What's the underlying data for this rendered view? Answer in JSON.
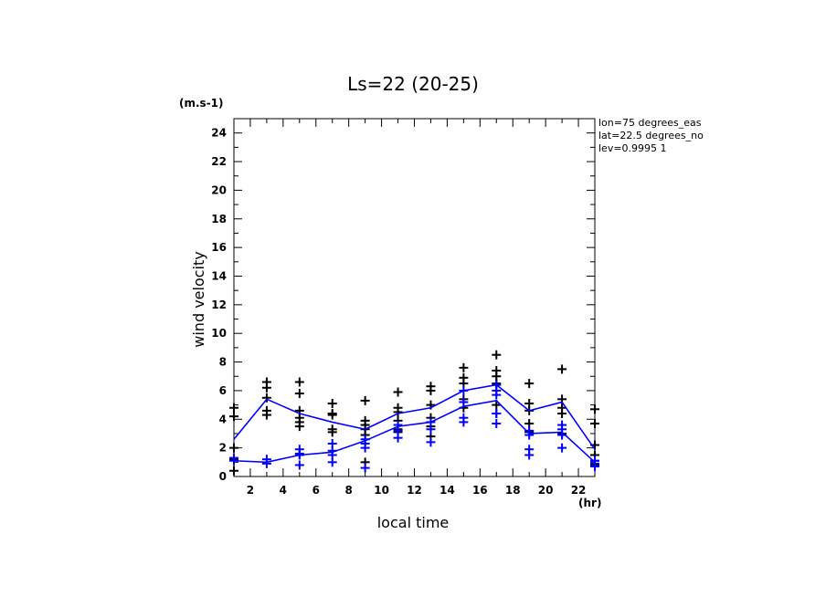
{
  "chart_data": {
    "type": "line",
    "title": "Ls=22 (20-25)",
    "xlabel": "local time",
    "ylabel": "wind velocity",
    "xunit": "(hr)",
    "yunit": "(m.s-1)",
    "xlim": [
      1,
      23
    ],
    "ylim": [
      0,
      25
    ],
    "xticks": [
      2,
      4,
      6,
      8,
      10,
      12,
      14,
      16,
      18,
      20,
      22
    ],
    "yticks": [
      0,
      2,
      4,
      6,
      8,
      10,
      12,
      14,
      16,
      18,
      20,
      22,
      24
    ],
    "annotations": [
      "lon=75 degrees_eas",
      "lat=22.5 degrees_no",
      "lev=0.9995 1"
    ],
    "x": [
      1,
      3,
      5,
      7,
      9,
      11,
      13,
      15,
      17,
      19,
      21,
      23
    ],
    "series": [
      {
        "color": "#0000ff",
        "values": [
          2.6,
          5.4,
          4.4,
          3.8,
          3.3,
          4.4,
          4.8,
          6.0,
          6.4,
          4.6,
          5.2,
          1.9
        ]
      },
      {
        "color": "#0000ff",
        "values": [
          1.1,
          1.0,
          1.5,
          1.7,
          2.5,
          3.5,
          3.8,
          4.9,
          5.3,
          3.0,
          3.1,
          1.0
        ]
      }
    ],
    "scatter_black": [
      {
        "x": 1,
        "y": [
          4.8,
          4.2,
          2.0,
          1.2,
          0.4
        ]
      },
      {
        "x": 3,
        "y": [
          6.6,
          6.2,
          5.5,
          4.6,
          4.3
        ]
      },
      {
        "x": 5,
        "y": [
          6.6,
          5.8,
          4.6,
          4.1,
          3.8,
          3.5
        ]
      },
      {
        "x": 7,
        "y": [
          5.1,
          4.4,
          4.3,
          3.3,
          3.1
        ]
      },
      {
        "x": 9,
        "y": [
          5.3,
          3.9,
          3.6,
          3.3,
          2.9,
          1.0
        ]
      },
      {
        "x": 11,
        "y": [
          5.9,
          4.8,
          4.5,
          3.9,
          3.3,
          3.1
        ]
      },
      {
        "x": 13,
        "y": [
          6.3,
          6.0,
          5.0,
          4.1,
          3.5,
          2.8
        ]
      },
      {
        "x": 15,
        "y": [
          7.6,
          6.9,
          6.5,
          5.4,
          4.8
        ]
      },
      {
        "x": 17,
        "y": [
          8.5,
          7.4,
          7.0,
          6.5,
          5.0,
          4.4
        ]
      },
      {
        "x": 19,
        "y": [
          6.5,
          5.1,
          4.6,
          3.7,
          3.1
        ]
      },
      {
        "x": 21,
        "y": [
          7.5,
          5.4,
          4.8,
          4.4,
          3.0
        ]
      },
      {
        "x": 23,
        "y": [
          4.7,
          3.7,
          2.2,
          1.5,
          1.1,
          0.8
        ]
      }
    ],
    "scatter_blue": [
      {
        "x": 1,
        "y": [
          1.3,
          1.1
        ]
      },
      {
        "x": 3,
        "y": [
          1.2,
          0.9
        ]
      },
      {
        "x": 5,
        "y": [
          1.9,
          1.6,
          1.5,
          0.8
        ]
      },
      {
        "x": 7,
        "y": [
          2.3,
          1.8,
          1.5,
          1.0
        ]
      },
      {
        "x": 9,
        "y": [
          2.6,
          2.3,
          2.0,
          0.6
        ]
      },
      {
        "x": 11,
        "y": [
          3.6,
          3.2,
          2.7
        ]
      },
      {
        "x": 13,
        "y": [
          3.8,
          3.3,
          2.4
        ]
      },
      {
        "x": 15,
        "y": [
          6.0,
          5.2,
          4.1,
          3.8
        ]
      },
      {
        "x": 17,
        "y": [
          6.4,
          6.0,
          5.7,
          4.4,
          3.7
        ]
      },
      {
        "x": 19,
        "y": [
          3.2,
          2.9,
          1.9,
          1.5
        ]
      },
      {
        "x": 21,
        "y": [
          3.6,
          3.3,
          2.9,
          2.0
        ]
      },
      {
        "x": 23,
        "y": [
          1.1,
          0.9,
          0.7
        ]
      }
    ]
  }
}
